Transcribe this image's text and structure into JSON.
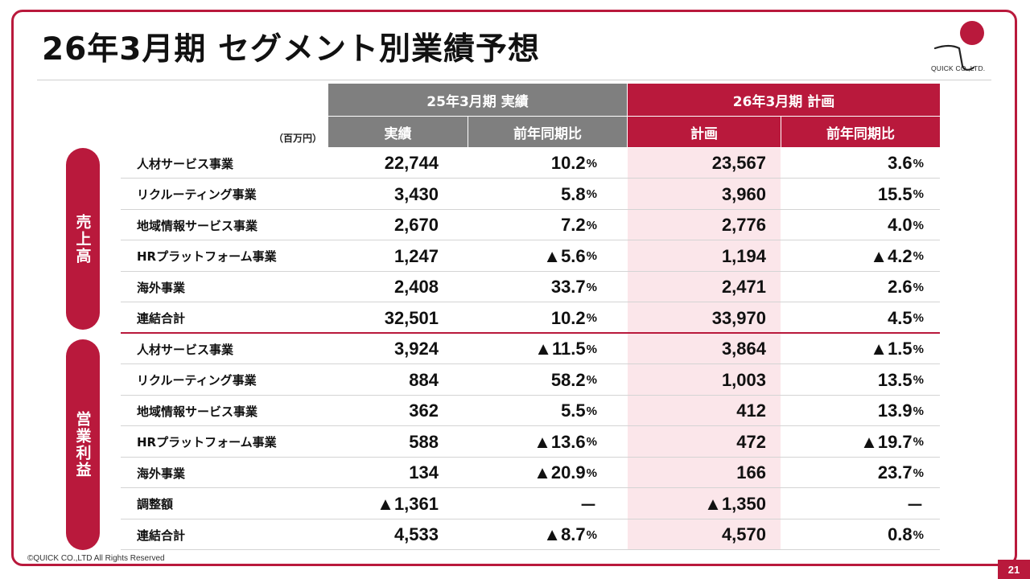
{
  "title": "26年3月期 セグメント別業績予想",
  "logo_text": "QUICK CO.,LTD.",
  "unit": "（百万円）",
  "header": {
    "group_actual": "25年3月期 実績",
    "group_plan": "26年3月期 計画",
    "col_actual": "実績",
    "col_actual_yoy": "前年同期比",
    "col_plan": "計画",
    "col_plan_yoy": "前年同期比"
  },
  "sections": {
    "sales": "売上高",
    "operating_income": "営業利益"
  },
  "rows": [
    {
      "label": "人材サービス事業",
      "actual": "22,744",
      "actual_yoy": "10.2",
      "plan": "23,567",
      "plan_yoy": "3.6"
    },
    {
      "label": "リクルーティング事業",
      "actual": "3,430",
      "actual_yoy": "5.8",
      "plan": "3,960",
      "plan_yoy": "15.5"
    },
    {
      "label": "地域情報サービス事業",
      "actual": "2,670",
      "actual_yoy": "7.2",
      "plan": "2,776",
      "plan_yoy": "4.0"
    },
    {
      "label": "HRプラットフォーム事業",
      "actual": "1,247",
      "actual_yoy": "▲5.6",
      "plan": "1,194",
      "plan_yoy": "▲4.2"
    },
    {
      "label": "海外事業",
      "actual": "2,408",
      "actual_yoy": "33.7",
      "plan": "2,471",
      "plan_yoy": "2.6"
    },
    {
      "label": "連結合計",
      "actual": "32,501",
      "actual_yoy": "10.2",
      "plan": "33,970",
      "plan_yoy": "4.5"
    },
    {
      "label": "人材サービス事業",
      "actual": "3,924",
      "actual_yoy": "▲11.5",
      "plan": "3,864",
      "plan_yoy": "▲1.5"
    },
    {
      "label": "リクルーティング事業",
      "actual": "884",
      "actual_yoy": "58.2",
      "plan": "1,003",
      "plan_yoy": "13.5"
    },
    {
      "label": "地域情報サービス事業",
      "actual": "362",
      "actual_yoy": "5.5",
      "plan": "412",
      "plan_yoy": "13.9"
    },
    {
      "label": "HRプラットフォーム事業",
      "actual": "588",
      "actual_yoy": "▲13.6",
      "plan": "472",
      "plan_yoy": "▲19.7"
    },
    {
      "label": "海外事業",
      "actual": "134",
      "actual_yoy": "▲20.9",
      "plan": "166",
      "plan_yoy": "23.7"
    },
    {
      "label": "調整額",
      "actual": "▲1,361",
      "actual_yoy": "－",
      "plan": "▲1,350",
      "plan_yoy": "－"
    },
    {
      "label": "連結合計",
      "actual": "4,533",
      "actual_yoy": "▲8.7",
      "plan": "4,570",
      "plan_yoy": "0.8"
    }
  ],
  "percent_sign": "%",
  "footer": "©QUICK CO.,LTD All Rights Reserved",
  "page_number": "21",
  "colors": {
    "accent": "#b9193c",
    "header_gray": "#7f7f7f",
    "plan_bg": "#fbe6ea"
  }
}
